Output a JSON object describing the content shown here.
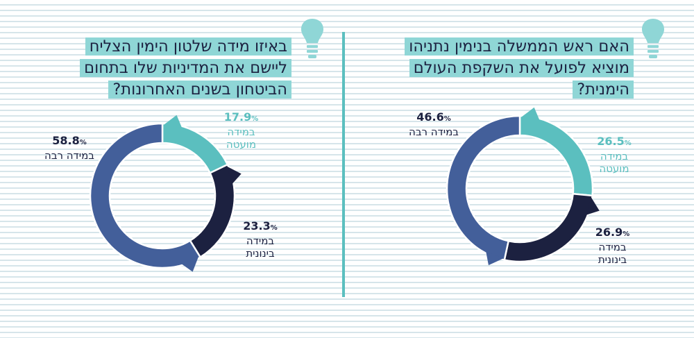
{
  "colors": {
    "teal": "#5bbfbf",
    "navy": "#1c2140",
    "blue": "#435f9a",
    "highlight": "#8fd6d6",
    "bulb": "#8fd6d6"
  },
  "icons": [
    "lightbulb-icon"
  ],
  "left": {
    "question_lines": [
      "באיזו מידה שלטון הימין הצליח",
      "ליישם את המדיניות שלו בתחום",
      "הביטחון בשנים האחרונות?"
    ]
  },
  "right": {
    "question_lines": [
      "האם ראש הממשלה בנימין נתניהו",
      "מוציא לפועל את השקפת העולם",
      "הימנית?"
    ]
  },
  "chart_data": [
    {
      "type": "pie",
      "title": "באיזו מידה שלטון הימין הצליח ליישם את המדיניות שלו בתחום הביטחון בשנים האחרונות?",
      "categories": [
        "במידה מועטה",
        "במידה בינונית",
        "במידה רבה"
      ],
      "values": [
        17.9,
        23.3,
        58.8
      ],
      "value_text": [
        "17.9",
        "23.3",
        "58.8"
      ],
      "unit": "%",
      "label_lines": [
        [
          "במידה",
          "מועטה"
        ],
        [
          "במידה",
          "בינונית"
        ],
        [
          "במידה רבה"
        ]
      ],
      "colors": [
        "#5bbfbf",
        "#1c2140",
        "#435f9a"
      ]
    },
    {
      "type": "pie",
      "title": "האם ראש הממשלה בנימין נתניהו מוציא לפועל את השקפת העולם הימנית?",
      "categories": [
        "במידה מועטה",
        "במידה בינונית",
        "במידה רבה"
      ],
      "values": [
        26.5,
        26.9,
        46.6
      ],
      "value_text": [
        "26.5",
        "26.9",
        "46.6"
      ],
      "unit": "%",
      "label_lines": [
        [
          "במידה",
          "מועטה"
        ],
        [
          "במידה",
          "בינונית"
        ],
        [
          "במידה רבה"
        ]
      ],
      "colors": [
        "#5bbfbf",
        "#1c2140",
        "#435f9a"
      ]
    }
  ]
}
